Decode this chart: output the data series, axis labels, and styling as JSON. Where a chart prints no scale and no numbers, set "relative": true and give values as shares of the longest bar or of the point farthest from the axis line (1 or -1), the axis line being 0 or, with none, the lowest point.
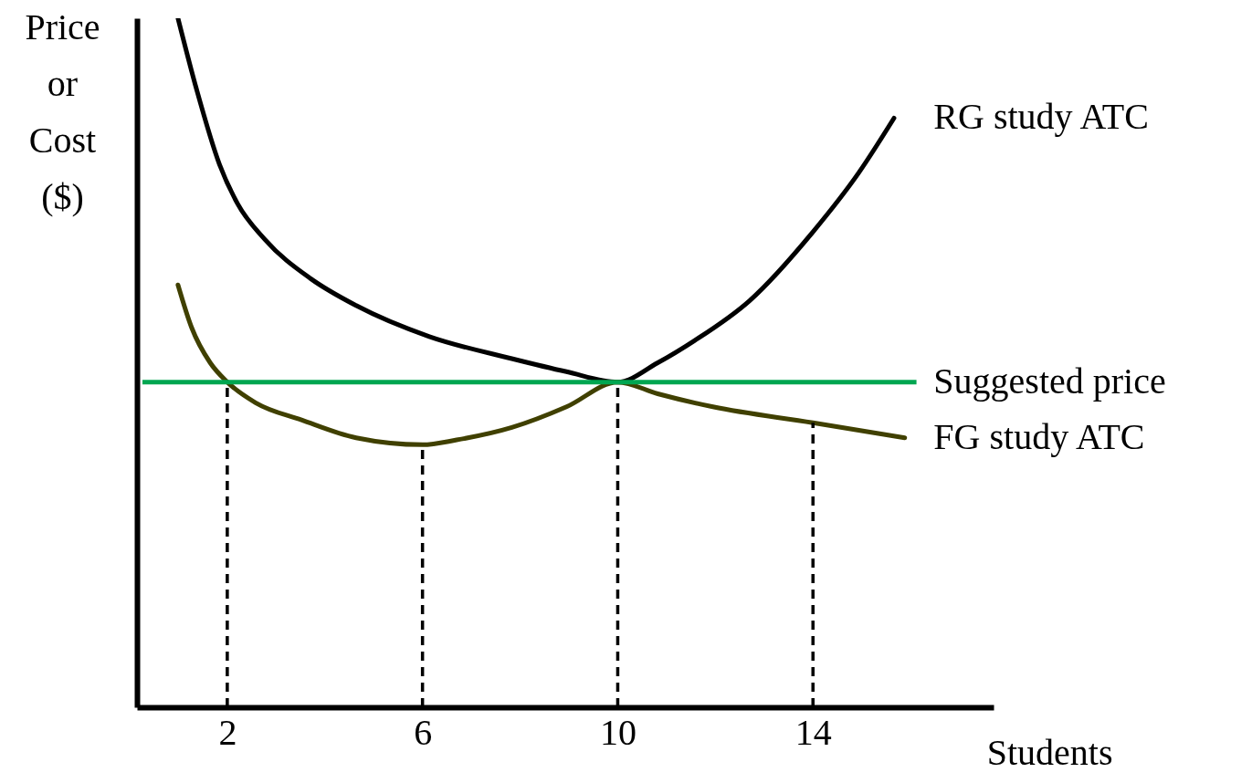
{
  "chart_data": {
    "type": "line",
    "relative": true,
    "xlabel": "Students",
    "ylabel": "Price or Cost ($)",
    "xlim": [
      0.15,
      17.7
    ],
    "xticks": [
      2,
      6,
      10,
      14
    ],
    "tick_labels": "x",
    "grid": false,
    "legend": false,
    "marker": "none",
    "line_style": "solid",
    "series": [
      {
        "name": "RG study ATC",
        "color": "#000000",
        "x": [
          0.99,
          1.37,
          1.84,
          2.21,
          2.77,
          3.71,
          4.64,
          6.14,
          7.83,
          8.95,
          10,
          10.82,
          11.57,
          12.7,
          14,
          14.94,
          15.66
        ],
        "values": [
          1.0,
          0.897,
          0.788,
          0.731,
          0.679,
          0.622,
          0.583,
          0.538,
          0.506,
          0.487,
          0.472,
          0.5,
          0.532,
          0.59,
          0.69,
          0.776,
          0.855
        ]
      },
      {
        "name": "FG study ATC",
        "color": "#404000",
        "x": [
          0.99,
          1.27,
          1.65,
          2,
          2.58,
          3.52,
          4.64,
          6,
          6.7,
          7.83,
          8.95,
          10,
          10.82,
          11.95,
          14,
          15.88
        ],
        "values": [
          0.613,
          0.551,
          0.5,
          0.472,
          0.442,
          0.417,
          0.391,
          0.381,
          0.388,
          0.406,
          0.436,
          0.472,
          0.455,
          0.436,
          0.413,
          0.391
        ]
      }
    ],
    "ref_lines": [
      {
        "axis": "y",
        "value": 0.472,
        "label": "Suggested price",
        "color": "#00a651",
        "line_style": "solid"
      },
      {
        "axis": "x",
        "value": 2,
        "color": "#000000",
        "line_style": "dashed"
      },
      {
        "axis": "x",
        "value": 6,
        "color": "#000000",
        "line_style": "dashed"
      },
      {
        "axis": "x",
        "value": 10,
        "color": "#000000",
        "line_style": "dashed"
      },
      {
        "axis": "x",
        "value": 14,
        "color": "#000000",
        "line_style": "dashed"
      }
    ]
  }
}
